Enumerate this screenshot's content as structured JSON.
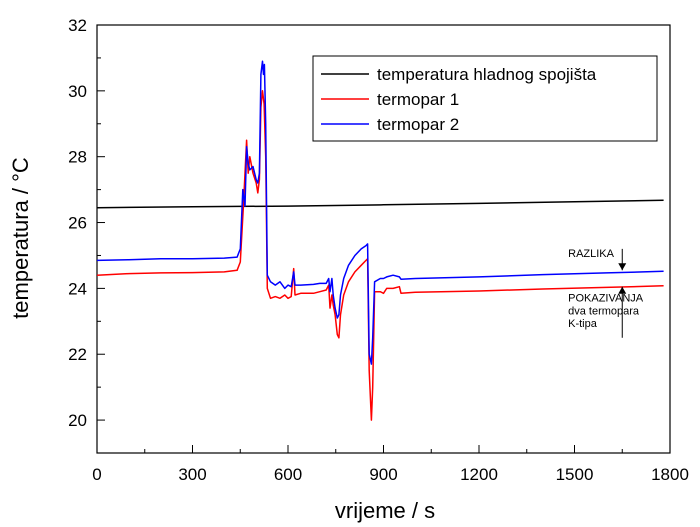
{
  "chart_data": {
    "type": "line",
    "xlabel": "vrijeme / s",
    "ylabel": "temperatura / °C",
    "xlim": [
      0,
      1800
    ],
    "ylim": [
      19,
      32
    ],
    "xticks": [
      0,
      300,
      600,
      900,
      1200,
      1500,
      1800
    ],
    "yticks": [
      20,
      22,
      24,
      26,
      28,
      30,
      32
    ],
    "grid": false,
    "legend_position": "top-right",
    "series": [
      {
        "name": "temperatura hladnog spojišta",
        "color": "#000000",
        "points": [
          [
            0,
            26.45
          ],
          [
            300,
            26.48
          ],
          [
            600,
            26.5
          ],
          [
            900,
            26.54
          ],
          [
            1200,
            26.58
          ],
          [
            1500,
            26.63
          ],
          [
            1780,
            26.68
          ]
        ]
      },
      {
        "name": "termopar 1",
        "color": "#ff0000",
        "points": [
          [
            0,
            24.4
          ],
          [
            100,
            24.45
          ],
          [
            200,
            24.47
          ],
          [
            300,
            24.48
          ],
          [
            400,
            24.5
          ],
          [
            440,
            24.55
          ],
          [
            450,
            24.8
          ],
          [
            460,
            26.5
          ],
          [
            465,
            27.5
          ],
          [
            470,
            28.5
          ],
          [
            475,
            27.5
          ],
          [
            480,
            28.0
          ],
          [
            490,
            27.5
          ],
          [
            500,
            27.2
          ],
          [
            505,
            26.9
          ],
          [
            510,
            27.3
          ],
          [
            515,
            29.5
          ],
          [
            520,
            30.0
          ],
          [
            525,
            29.6
          ],
          [
            530,
            28.0
          ],
          [
            535,
            24.0
          ],
          [
            545,
            23.7
          ],
          [
            560,
            23.75
          ],
          [
            575,
            23.7
          ],
          [
            590,
            23.8
          ],
          [
            600,
            23.7
          ],
          [
            610,
            23.75
          ],
          [
            618,
            24.6
          ],
          [
            622,
            23.8
          ],
          [
            640,
            23.85
          ],
          [
            680,
            23.85
          ],
          [
            700,
            23.9
          ],
          [
            720,
            23.95
          ],
          [
            728,
            24.1
          ],
          [
            732,
            23.4
          ],
          [
            738,
            23.8
          ],
          [
            742,
            23.5
          ],
          [
            748,
            23.2
          ],
          [
            755,
            22.6
          ],
          [
            760,
            22.5
          ],
          [
            765,
            23.2
          ],
          [
            775,
            23.8
          ],
          [
            790,
            24.2
          ],
          [
            810,
            24.5
          ],
          [
            830,
            24.7
          ],
          [
            845,
            24.85
          ],
          [
            850,
            24.9
          ],
          [
            855,
            21.5
          ],
          [
            862,
            20.0
          ],
          [
            866,
            21.0
          ],
          [
            872,
            23.9
          ],
          [
            890,
            23.9
          ],
          [
            900,
            23.85
          ],
          [
            910,
            24.0
          ],
          [
            930,
            24.0
          ],
          [
            950,
            24.05
          ],
          [
            955,
            23.85
          ],
          [
            1000,
            23.88
          ],
          [
            1200,
            23.92
          ],
          [
            1400,
            23.98
          ],
          [
            1600,
            24.03
          ],
          [
            1780,
            24.08
          ]
        ]
      },
      {
        "name": "termopar 2",
        "color": "#0000ff",
        "points": [
          [
            0,
            24.85
          ],
          [
            100,
            24.87
          ],
          [
            200,
            24.9
          ],
          [
            300,
            24.9
          ],
          [
            400,
            24.92
          ],
          [
            440,
            24.95
          ],
          [
            450,
            25.2
          ],
          [
            458,
            27.0
          ],
          [
            465,
            26.5
          ],
          [
            470,
            28.3
          ],
          [
            475,
            27.8
          ],
          [
            480,
            27.6
          ],
          [
            490,
            27.7
          ],
          [
            500,
            27.3
          ],
          [
            505,
            27.2
          ],
          [
            510,
            27.5
          ],
          [
            515,
            30.5
          ],
          [
            520,
            30.9
          ],
          [
            523,
            30.5
          ],
          [
            526,
            30.8
          ],
          [
            530,
            29.0
          ],
          [
            535,
            24.4
          ],
          [
            545,
            24.2
          ],
          [
            560,
            24.1
          ],
          [
            575,
            24.2
          ],
          [
            590,
            24.0
          ],
          [
            600,
            24.1
          ],
          [
            610,
            24.05
          ],
          [
            618,
            24.5
          ],
          [
            622,
            24.1
          ],
          [
            640,
            24.1
          ],
          [
            680,
            24.12
          ],
          [
            700,
            24.15
          ],
          [
            720,
            24.15
          ],
          [
            728,
            24.3
          ],
          [
            732,
            23.9
          ],
          [
            738,
            24.3
          ],
          [
            742,
            23.8
          ],
          [
            748,
            23.4
          ],
          [
            755,
            23.1
          ],
          [
            760,
            23.2
          ],
          [
            765,
            23.8
          ],
          [
            775,
            24.3
          ],
          [
            790,
            24.7
          ],
          [
            810,
            25.0
          ],
          [
            830,
            25.2
          ],
          [
            845,
            25.3
          ],
          [
            850,
            25.35
          ],
          [
            855,
            22.0
          ],
          [
            862,
            21.7
          ],
          [
            866,
            22.5
          ],
          [
            872,
            24.2
          ],
          [
            890,
            24.3
          ],
          [
            900,
            24.3
          ],
          [
            910,
            24.35
          ],
          [
            930,
            24.4
          ],
          [
            950,
            24.35
          ],
          [
            955,
            24.28
          ],
          [
            1000,
            24.3
          ],
          [
            1200,
            24.35
          ],
          [
            1400,
            24.42
          ],
          [
            1600,
            24.47
          ],
          [
            1780,
            24.52
          ]
        ]
      }
    ],
    "annotations": [
      {
        "text": "RAZLIKA",
        "x": 1480,
        "y": 24.95,
        "anchor": "start"
      },
      {
        "text": "POKAZIVANJA",
        "x": 1480,
        "y": 23.6,
        "anchor": "start"
      },
      {
        "text": "dva termopara",
        "x": 1480,
        "y": 23.2,
        "anchor": "start"
      },
      {
        "text": "K-tipa",
        "x": 1480,
        "y": 22.82,
        "anchor": "start"
      }
    ],
    "difference_arrow": {
      "x": 1650,
      "top": 24.52,
      "bottom": 24.08,
      "above_end": 25.2,
      "below_end": 22.5
    }
  }
}
